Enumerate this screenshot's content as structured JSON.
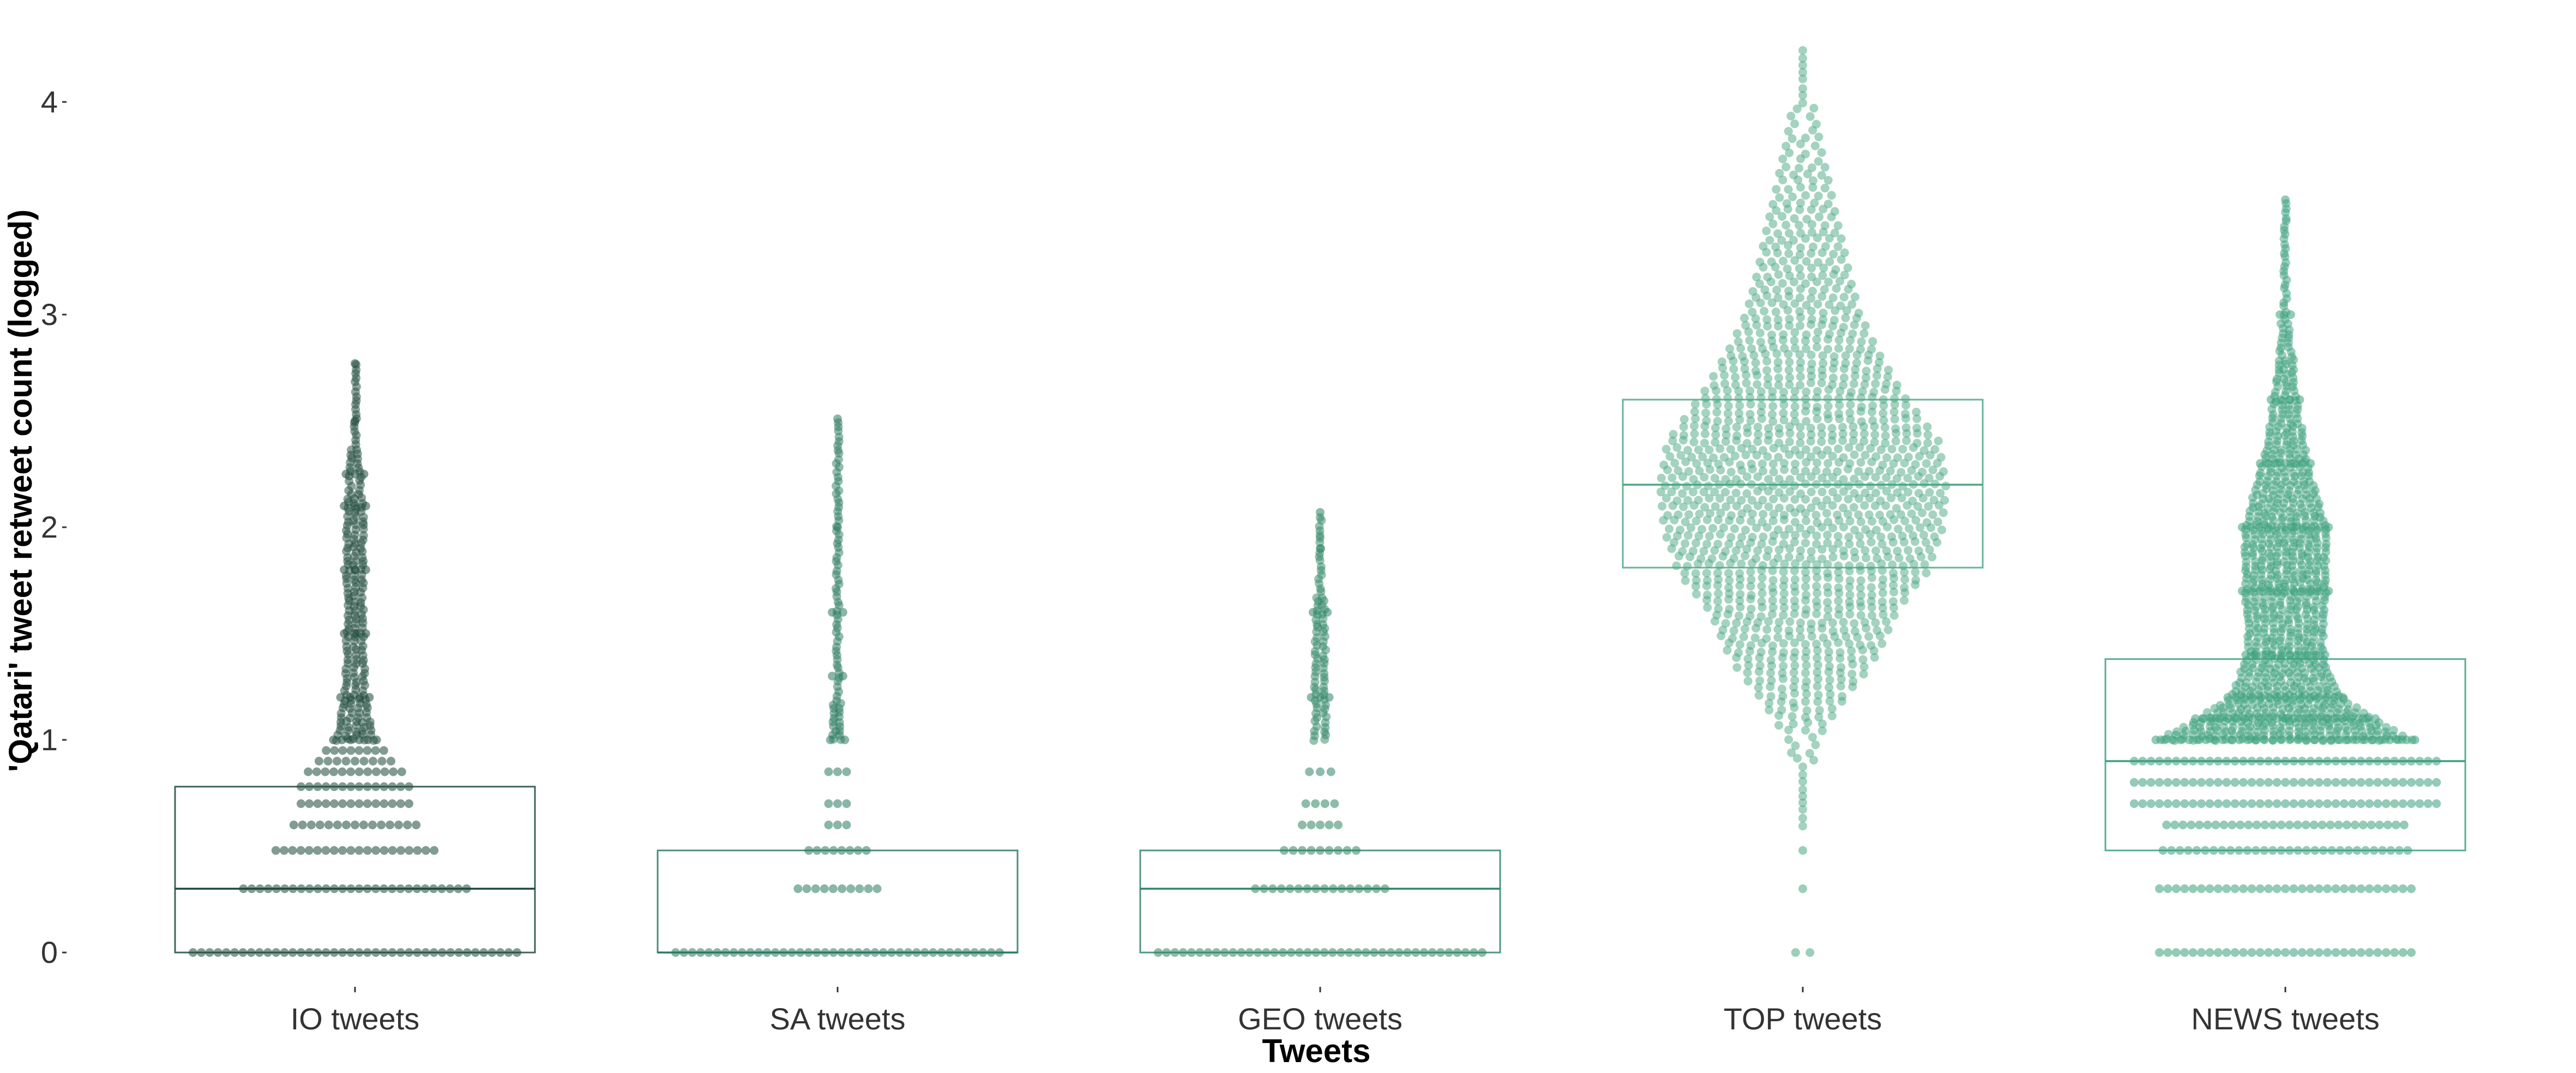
{
  "chart_data": {
    "type": "beeswarm-boxplot",
    "title": "",
    "xlabel": "Tweets",
    "ylabel": "'Qatari' tweet retweet count (logged)",
    "ylim": [
      0,
      4.25
    ],
    "yticks": [
      0,
      1,
      2,
      3,
      4
    ],
    "ytick_labels": [
      "0",
      "1",
      "2",
      "3",
      "4"
    ],
    "grid": false,
    "legend": "none",
    "categories": [
      "IO tweets",
      "SA tweets",
      "GEO tweets",
      "TOP tweets",
      "NEWS tweets"
    ],
    "colors": [
      "#1d4a3a",
      "#2a7a5e",
      "#2f8565",
      "#4aa882",
      "#3aa07c"
    ],
    "box_stats": [
      {
        "category": "IO tweets",
        "q1": 0,
        "median": 0.3,
        "q3": 0.78
      },
      {
        "category": "SA tweets",
        "q1": 0,
        "median": 0,
        "q3": 0.48
      },
      {
        "category": "GEO tweets",
        "q1": 0,
        "median": 0.3,
        "q3": 0.48
      },
      {
        "category": "TOP tweets",
        "q1": 1.81,
        "median": 2.2,
        "q3": 2.6
      },
      {
        "category": "NEWS tweets",
        "q1": 0.48,
        "median": 0.9,
        "q3": 1.38
      }
    ],
    "distribution_levels": [
      {
        "category": "IO tweets",
        "max": 2.77,
        "levels": [
          {
            "y": 0,
            "half_width": 0.9
          },
          {
            "y": 0.3,
            "half_width": 0.62
          },
          {
            "y": 0.48,
            "half_width": 0.44
          },
          {
            "y": 0.6,
            "half_width": 0.34
          },
          {
            "y": 0.7,
            "half_width": 0.3
          },
          {
            "y": 0.78,
            "half_width": 0.3
          },
          {
            "y": 0.85,
            "half_width": 0.26
          },
          {
            "y": 0.9,
            "half_width": 0.2
          },
          {
            "y": 0.95,
            "half_width": 0.16
          },
          {
            "y": 1.0,
            "half_width": 0.12
          },
          {
            "y": 1.2,
            "half_width": 0.08
          },
          {
            "y": 1.5,
            "half_width": 0.06
          },
          {
            "y": 1.8,
            "half_width": 0.06
          },
          {
            "y": 2.1,
            "half_width": 0.06
          },
          {
            "y": 2.25,
            "half_width": 0.05
          },
          {
            "y": 2.5,
            "half_width": 0.02
          },
          {
            "y": 2.77,
            "half_width": 0.0
          }
        ]
      },
      {
        "category": "SA tweets",
        "max": 2.51,
        "levels": [
          {
            "y": 0,
            "half_width": 0.9
          },
          {
            "y": 0.3,
            "half_width": 0.22
          },
          {
            "y": 0.48,
            "half_width": 0.16
          },
          {
            "y": 0.6,
            "half_width": 0.05
          },
          {
            "y": 0.7,
            "half_width": 0.05
          },
          {
            "y": 0.85,
            "half_width": 0.05
          },
          {
            "y": 1.0,
            "half_width": 0.04
          },
          {
            "y": 1.3,
            "half_width": 0.03
          },
          {
            "y": 1.6,
            "half_width": 0.03
          },
          {
            "y": 2.0,
            "half_width": 0.01
          },
          {
            "y": 2.51,
            "half_width": 0.0
          }
        ]
      },
      {
        "category": "GEO tweets",
        "max": 2.07,
        "levels": [
          {
            "y": 0,
            "half_width": 0.9
          },
          {
            "y": 0.3,
            "half_width": 0.36
          },
          {
            "y": 0.48,
            "half_width": 0.2
          },
          {
            "y": 0.6,
            "half_width": 0.1
          },
          {
            "y": 0.7,
            "half_width": 0.08
          },
          {
            "y": 0.85,
            "half_width": 0.06
          },
          {
            "y": 1.2,
            "half_width": 0.05
          },
          {
            "y": 1.6,
            "half_width": 0.04
          },
          {
            "y": 1.9,
            "half_width": 0.02
          },
          {
            "y": 2.07,
            "half_width": 0.0
          }
        ]
      },
      {
        "category": "TOP tweets",
        "max": 4.24,
        "levels": [
          {
            "y": 0,
            "half_width": 0.04
          },
          {
            "y": 0.3,
            "half_width": 0.01
          },
          {
            "y": 0.48,
            "half_width": 0.02
          },
          {
            "y": 0.6,
            "half_width": 0.02
          },
          {
            "y": 0.8,
            "half_width": 0.03
          },
          {
            "y": 1.0,
            "half_width": 0.06
          },
          {
            "y": 1.2,
            "half_width": 0.22
          },
          {
            "y": 1.4,
            "half_width": 0.4
          },
          {
            "y": 1.6,
            "half_width": 0.5
          },
          {
            "y": 1.8,
            "half_width": 0.68
          },
          {
            "y": 2.0,
            "half_width": 0.76
          },
          {
            "y": 2.2,
            "half_width": 0.78
          },
          {
            "y": 2.4,
            "half_width": 0.74
          },
          {
            "y": 2.6,
            "half_width": 0.56
          },
          {
            "y": 2.8,
            "half_width": 0.42
          },
          {
            "y": 3.0,
            "half_width": 0.3
          },
          {
            "y": 3.2,
            "half_width": 0.24
          },
          {
            "y": 3.5,
            "half_width": 0.16
          },
          {
            "y": 3.8,
            "half_width": 0.08
          },
          {
            "y": 4.0,
            "half_width": 0.04
          },
          {
            "y": 4.24,
            "half_width": 0.0
          }
        ]
      },
      {
        "category": "NEWS tweets",
        "max": 3.54,
        "levels": [
          {
            "y": 0,
            "half_width": 0.7
          },
          {
            "y": 0.3,
            "half_width": 0.7
          },
          {
            "y": 0.48,
            "half_width": 0.68
          },
          {
            "y": 0.6,
            "half_width": 0.66
          },
          {
            "y": 0.7,
            "half_width": 0.84
          },
          {
            "y": 0.8,
            "half_width": 0.84
          },
          {
            "y": 0.9,
            "half_width": 0.84
          },
          {
            "y": 1.0,
            "half_width": 0.72
          },
          {
            "y": 1.1,
            "half_width": 0.5
          },
          {
            "y": 1.2,
            "half_width": 0.32
          },
          {
            "y": 1.4,
            "half_width": 0.22
          },
          {
            "y": 1.7,
            "half_width": 0.24
          },
          {
            "y": 2.0,
            "half_width": 0.24
          },
          {
            "y": 2.3,
            "half_width": 0.14
          },
          {
            "y": 2.6,
            "half_width": 0.08
          },
          {
            "y": 3.0,
            "half_width": 0.03
          },
          {
            "y": 3.54,
            "half_width": 0.0
          }
        ]
      }
    ]
  }
}
